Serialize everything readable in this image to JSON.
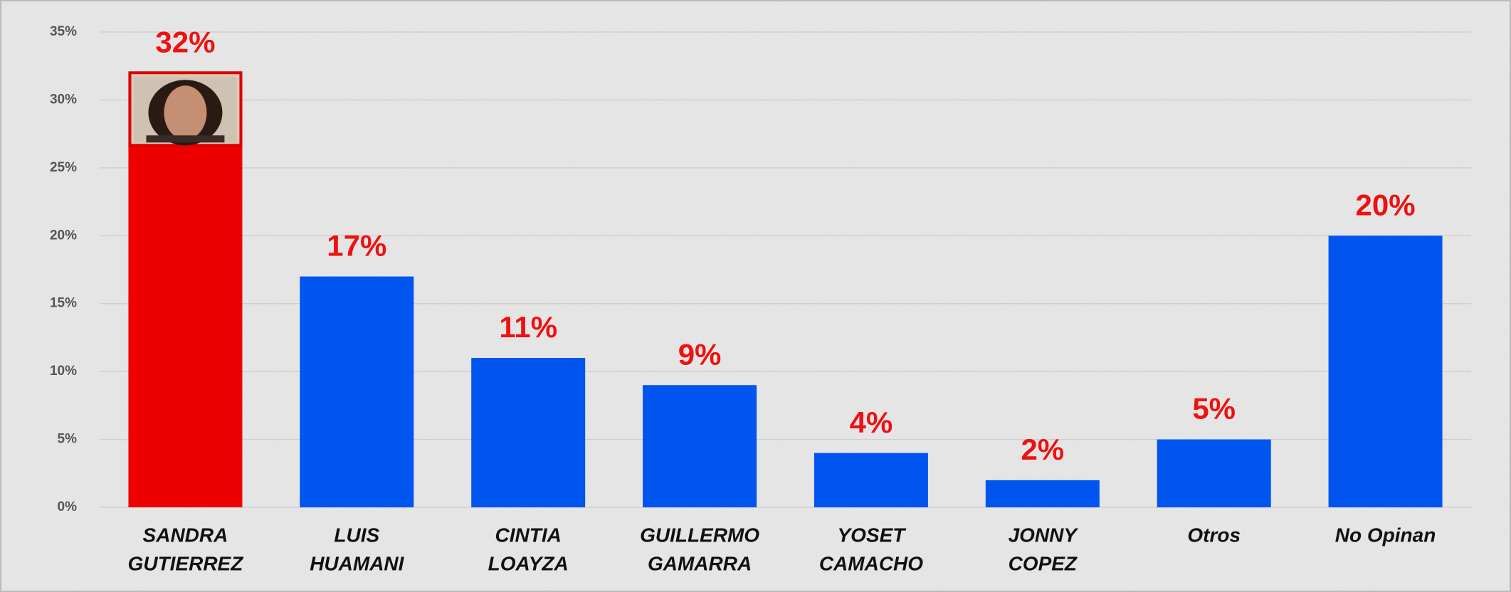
{
  "chart_data": {
    "type": "bar",
    "categories": [
      [
        "SANDRA",
        "GUTIERREZ"
      ],
      [
        "LUIS",
        "HUAMANI"
      ],
      [
        "CINTIA",
        "LOAYZA"
      ],
      [
        "GUILLERMO",
        "GAMARRA"
      ],
      [
        "YOSET",
        "CAMACHO"
      ],
      [
        "JONNY",
        "COPEZ"
      ],
      [
        "Otros"
      ],
      [
        "No Opinan"
      ]
    ],
    "values": [
      32,
      17,
      11,
      9,
      4,
      2,
      5,
      20
    ],
    "value_labels": [
      "32%",
      "17%",
      "11%",
      "9%",
      "4%",
      "2%",
      "5%",
      "20%"
    ],
    "colors": [
      "#ee0000",
      "#0055ee",
      "#0055ee",
      "#0055ee",
      "#0055ee",
      "#0055ee",
      "#0055ee",
      "#0055ee"
    ],
    "ylim": [
      0,
      35
    ],
    "yticks": [
      {
        "value": 0,
        "label": "0%"
      },
      {
        "value": 5,
        "label": "5%"
      },
      {
        "value": 10,
        "label": "10%"
      },
      {
        "value": 15,
        "label": "15%"
      },
      {
        "value": 20,
        "label": "20%"
      },
      {
        "value": 25,
        "label": "25%"
      },
      {
        "value": 30,
        "label": "30%"
      },
      {
        "value": 35,
        "label": "35%"
      }
    ],
    "grid": true
  }
}
